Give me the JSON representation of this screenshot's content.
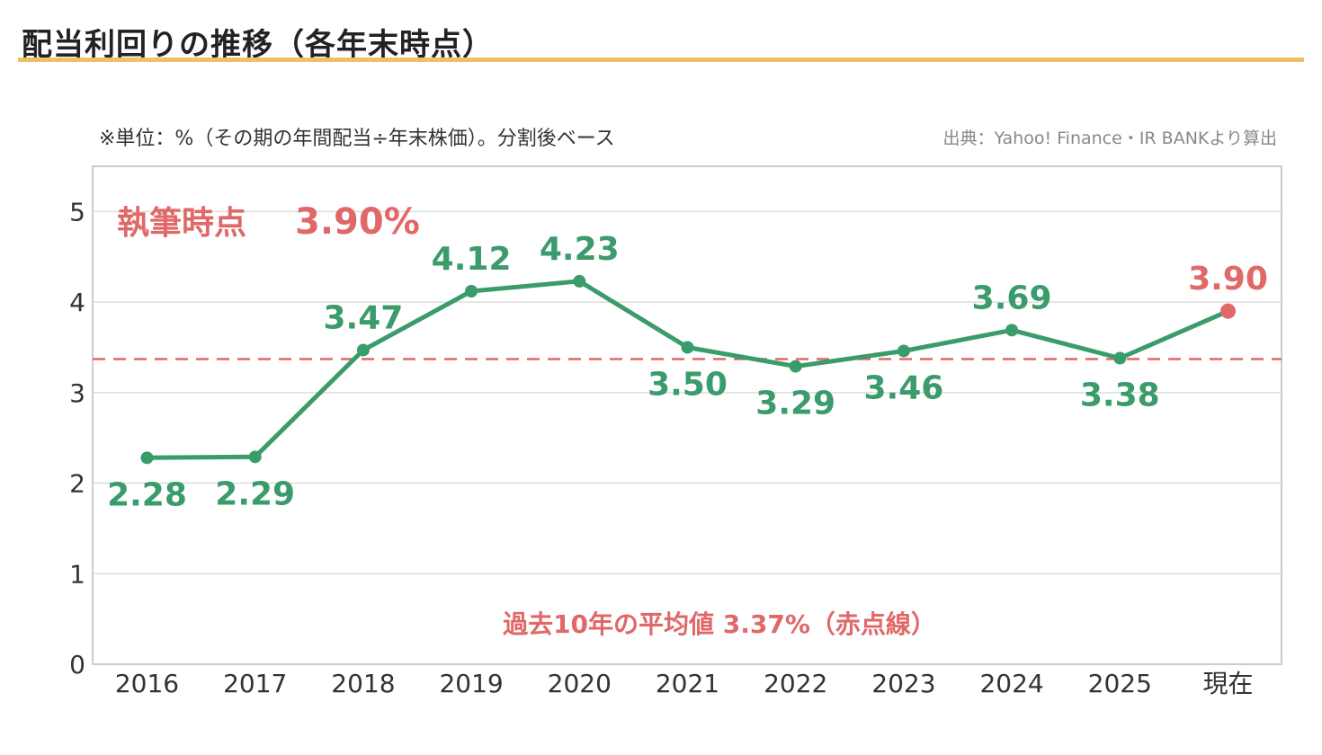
{
  "title": "配当利回りの推移（各年末時点）",
  "note_left": "※単位：%（その期の年間配当÷年末株価）。分割後ベース",
  "note_right": "出典：Yahoo! Finance・IR BANKより算出",
  "callout": {
    "label": "執筆時点",
    "value": "3.90%"
  },
  "average_label": "過去10年の平均値 3.37%（赤点線）",
  "colors": {
    "line": "#3a9b6b",
    "highlight": "#e06868",
    "title_rule": "#f0c068",
    "grid": "#dddddd"
  },
  "chart_data": {
    "type": "line",
    "title": "配当利回りの推移（各年末時点）",
    "xlabel": "",
    "ylabel": "",
    "categories": [
      "2016",
      "2017",
      "2018",
      "2019",
      "2020",
      "2021",
      "2022",
      "2023",
      "2024",
      "2025",
      "現在"
    ],
    "values": [
      2.28,
      2.29,
      3.47,
      4.12,
      4.23,
      3.5,
      3.29,
      3.46,
      3.69,
      3.38,
      3.9
    ],
    "data_labels": [
      "2.28",
      "2.29",
      "3.47",
      "4.12",
      "4.23",
      "3.50",
      "3.29",
      "3.46",
      "3.69",
      "3.38",
      "3.90"
    ],
    "label_position": [
      "below",
      "below",
      "above",
      "above",
      "above",
      "below",
      "below",
      "below",
      "above",
      "below",
      "above"
    ],
    "highlight_last": true,
    "average": 3.37,
    "ylim": [
      0,
      5.5
    ],
    "yticks": [
      0,
      1,
      2,
      3,
      4,
      5
    ],
    "grid": true,
    "legend": "none"
  }
}
